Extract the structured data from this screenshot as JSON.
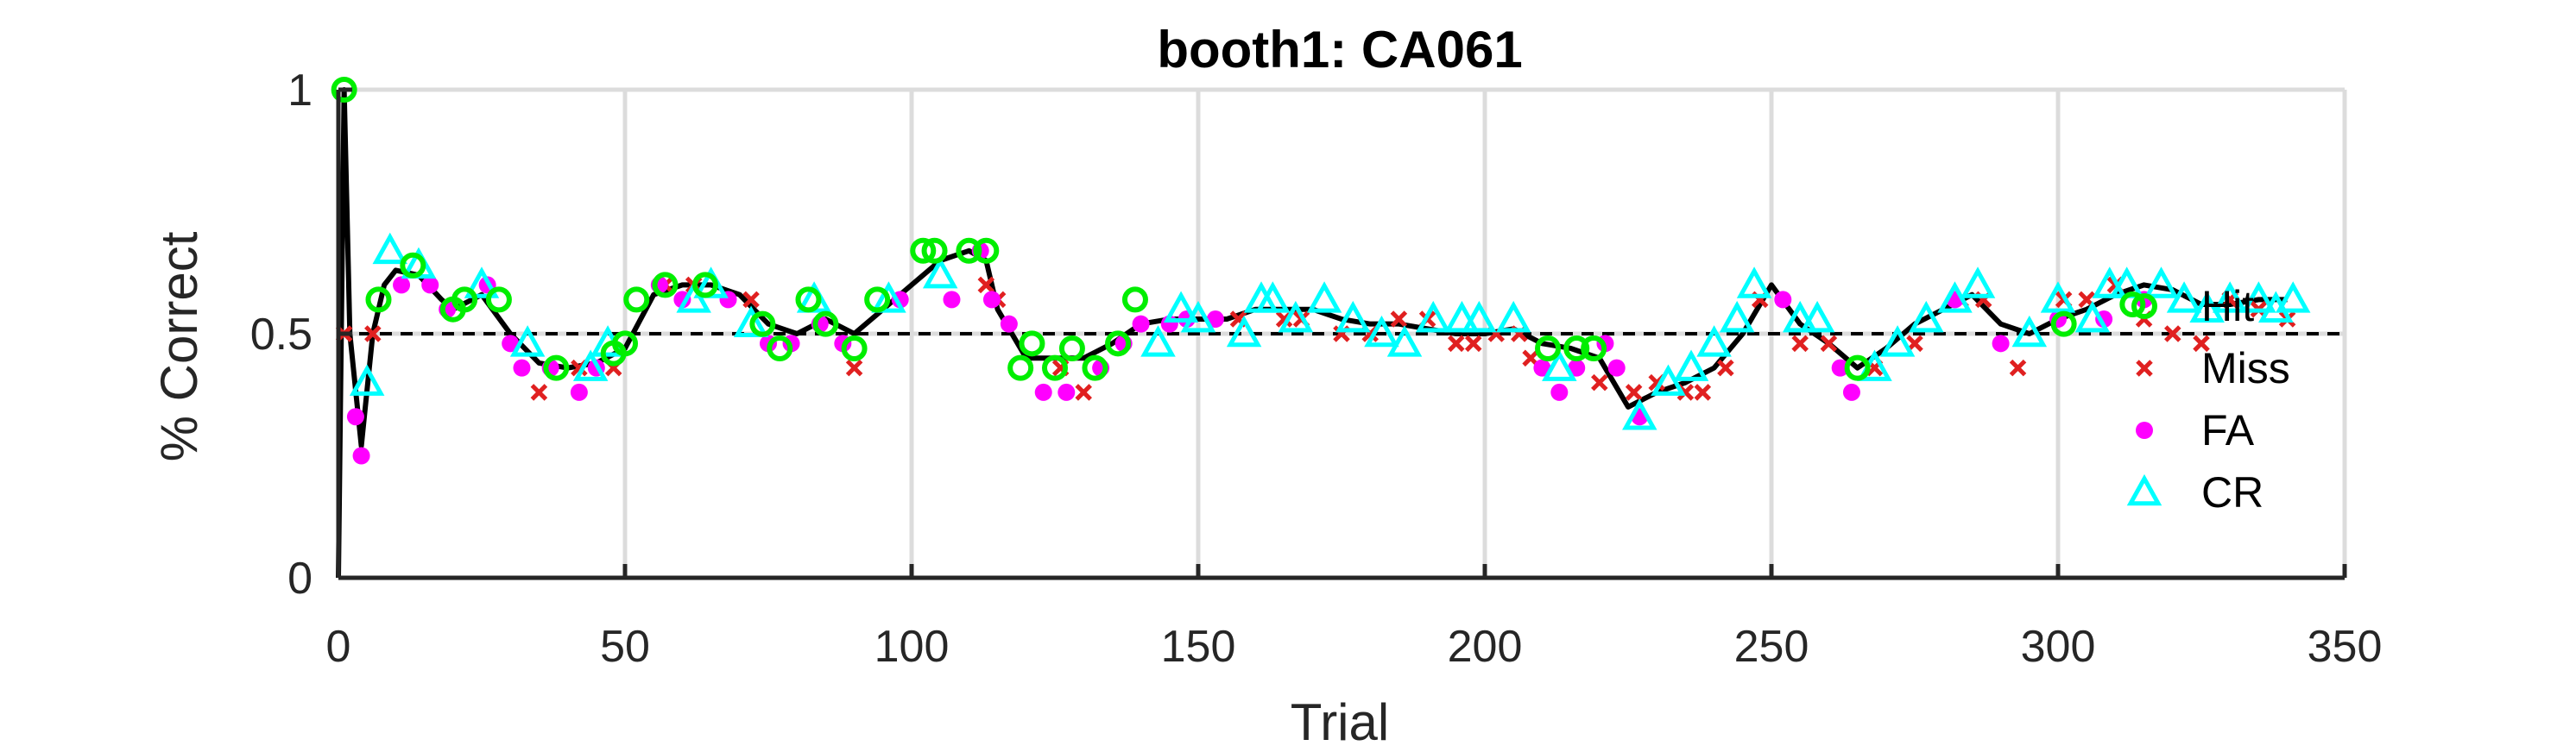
{
  "chart_data": {
    "type": "scatter",
    "title": "booth1: CA061",
    "xlabel": "Trial",
    "ylabel": "% Correct",
    "xlim": [
      0,
      350
    ],
    "ylim": [
      0,
      1
    ],
    "xticks": [
      "0",
      "50",
      "100",
      "150",
      "200",
      "250",
      "300",
      "350"
    ],
    "yticks": [
      "0",
      "0.5",
      "1"
    ],
    "grid": true,
    "reference_line": 0.5,
    "legend_position": "right",
    "series": [
      {
        "name": "Hit",
        "marker": "circle-open",
        "color": "#00ee00",
        "x": [
          1,
          7,
          13,
          20,
          22,
          28,
          38,
          48,
          50,
          52,
          57,
          64,
          74,
          77,
          82,
          85,
          90,
          94,
          102,
          104,
          110,
          113,
          119,
          121,
          125,
          128,
          132,
          136,
          139,
          211,
          216,
          219,
          265,
          301,
          313
        ],
        "y": [
          1,
          0.57,
          0.64,
          0.55,
          0.57,
          0.57,
          0.43,
          0.46,
          0.48,
          0.57,
          0.6,
          0.6,
          0.52,
          0.47,
          0.57,
          0.52,
          0.47,
          0.57,
          0.67,
          0.67,
          0.67,
          0.67,
          0.43,
          0.48,
          0.43,
          0.47,
          0.43,
          0.48,
          0.57,
          0.47,
          0.47,
          0.47,
          0.43,
          0.52,
          0.56
        ]
      },
      {
        "name": "Miss",
        "marker": "x",
        "color": "#e02020",
        "x": [
          1,
          6,
          35,
          42,
          48,
          57,
          62,
          72,
          90,
          113,
          115,
          126,
          130,
          157,
          165,
          168,
          175,
          180,
          185,
          190,
          195,
          198,
          202,
          206,
          208,
          220,
          226,
          230,
          235,
          238,
          242,
          248,
          255,
          260,
          268,
          275,
          283,
          287,
          293,
          301,
          305,
          310,
          315,
          320,
          325,
          330,
          335,
          340
        ],
        "y": [
          0.5,
          0.5,
          0.38,
          0.43,
          0.43,
          0.6,
          0.6,
          0.57,
          0.43,
          0.6,
          0.57,
          0.43,
          0.38,
          0.53,
          0.53,
          0.53,
          0.5,
          0.5,
          0.53,
          0.53,
          0.48,
          0.48,
          0.5,
          0.5,
          0.45,
          0.4,
          0.38,
          0.4,
          0.38,
          0.38,
          0.43,
          0.57,
          0.48,
          0.48,
          0.43,
          0.48,
          0.57,
          0.57,
          0.43,
          0.57,
          0.57,
          0.6,
          0.53,
          0.5,
          0.48,
          0.57,
          0.55,
          0.53
        ]
      },
      {
        "name": "FA",
        "marker": "dot",
        "color": "#ff00ff",
        "x": [
          3,
          4,
          11,
          16,
          19,
          26,
          30,
          32,
          37,
          42,
          45,
          56,
          60,
          68,
          75,
          79,
          84,
          88,
          98,
          107,
          112,
          114,
          117,
          123,
          127,
          133,
          137,
          140,
          145,
          148,
          153,
          210,
          213,
          216,
          221,
          223,
          227,
          252,
          262,
          264,
          282,
          290,
          300,
          308,
          315
        ],
        "y": [
          0.33,
          0.25,
          0.6,
          0.6,
          0.55,
          0.6,
          0.48,
          0.43,
          0.43,
          0.38,
          0.43,
          0.6,
          0.57,
          0.57,
          0.48,
          0.48,
          0.52,
          0.48,
          0.57,
          0.57,
          0.67,
          0.57,
          0.52,
          0.38,
          0.38,
          0.43,
          0.48,
          0.52,
          0.52,
          0.53,
          0.53,
          0.43,
          0.38,
          0.43,
          0.48,
          0.43,
          0.33,
          0.57,
          0.43,
          0.38,
          0.57,
          0.48,
          0.53,
          0.53,
          0.57
        ]
      },
      {
        "name": "CR",
        "marker": "triangle-open",
        "color": "#00ffff",
        "x": [
          5,
          9,
          14,
          25,
          33,
          44,
          47,
          62,
          65,
          72,
          83,
          96,
          105,
          143,
          147,
          150,
          158,
          161,
          163,
          167,
          172,
          177,
          182,
          186,
          191,
          196,
          199,
          205,
          213,
          227,
          232,
          236,
          240,
          244,
          247,
          255,
          258,
          268,
          272,
          277,
          282,
          286,
          295,
          300,
          306,
          309,
          312,
          318,
          322,
          326,
          330,
          335,
          338,
          341
        ],
        "y": [
          0.4,
          0.67,
          0.64,
          0.6,
          0.48,
          0.43,
          0.48,
          0.57,
          0.6,
          0.52,
          0.57,
          0.57,
          0.62,
          0.48,
          0.55,
          0.53,
          0.5,
          0.57,
          0.57,
          0.53,
          0.57,
          0.53,
          0.5,
          0.48,
          0.53,
          0.53,
          0.53,
          0.53,
          0.43,
          0.33,
          0.4,
          0.43,
          0.48,
          0.53,
          0.6,
          0.53,
          0.53,
          0.43,
          0.48,
          0.53,
          0.57,
          0.6,
          0.5,
          0.57,
          0.53,
          0.6,
          0.6,
          0.6,
          0.57,
          0.55,
          0.57,
          0.57,
          0.55,
          0.57
        ]
      }
    ],
    "running_accuracy": {
      "name": "running % correct (solid black)",
      "x": [
        0,
        1,
        2,
        4,
        6,
        8,
        10,
        14,
        18,
        20,
        25,
        30,
        35,
        40,
        45,
        50,
        55,
        60,
        65,
        70,
        75,
        80,
        85,
        90,
        95,
        100,
        105,
        110,
        113,
        115,
        120,
        125,
        130,
        135,
        140,
        145,
        150,
        155,
        160,
        165,
        170,
        175,
        180,
        185,
        190,
        195,
        200,
        205,
        210,
        215,
        220,
        225,
        230,
        235,
        240,
        245,
        250,
        255,
        260,
        265,
        270,
        275,
        280,
        285,
        290,
        295,
        300,
        305,
        310,
        315,
        320,
        325,
        330,
        335,
        340
      ],
      "y": [
        0,
        1,
        0.5,
        0.27,
        0.5,
        0.6,
        0.63,
        0.62,
        0.57,
        0.55,
        0.58,
        0.5,
        0.44,
        0.43,
        0.44,
        0.47,
        0.58,
        0.6,
        0.6,
        0.58,
        0.52,
        0.5,
        0.53,
        0.5,
        0.55,
        0.6,
        0.65,
        0.67,
        0.65,
        0.55,
        0.45,
        0.45,
        0.45,
        0.48,
        0.52,
        0.53,
        0.53,
        0.53,
        0.55,
        0.55,
        0.55,
        0.53,
        0.52,
        0.52,
        0.51,
        0.5,
        0.5,
        0.51,
        0.48,
        0.47,
        0.45,
        0.35,
        0.38,
        0.4,
        0.43,
        0.5,
        0.6,
        0.52,
        0.48,
        0.43,
        0.47,
        0.52,
        0.55,
        0.58,
        0.52,
        0.5,
        0.53,
        0.55,
        0.58,
        0.6,
        0.59,
        0.56,
        0.56,
        0.57,
        0.57
      ]
    }
  }
}
